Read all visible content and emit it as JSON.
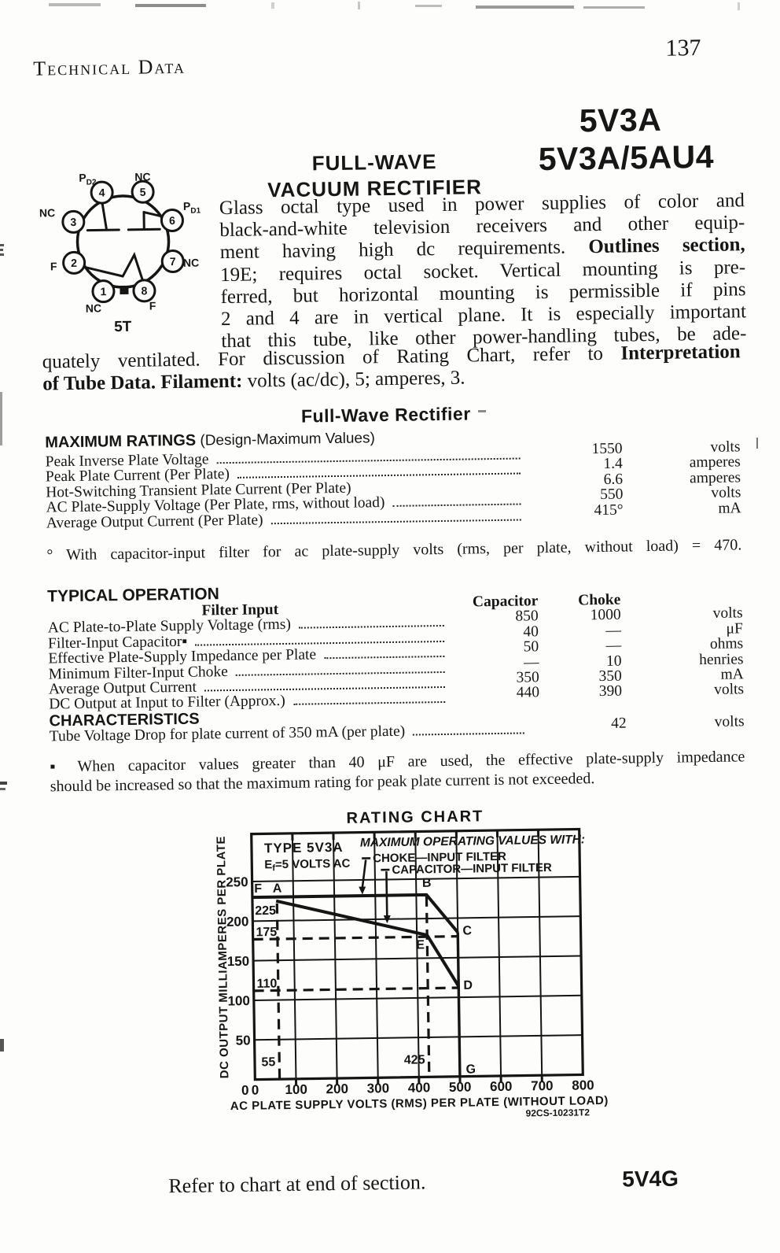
{
  "page": {
    "header_left": "Technical Data",
    "page_number": "137",
    "type_codes": [
      "5V3A",
      "5V3A/5AU4"
    ],
    "title_lines": [
      "FULL-WAVE",
      "VACUUM RECTIFIER"
    ],
    "footer_note": "Refer to chart at end of section.",
    "footer_type": "5V4G"
  },
  "tube_diagram": {
    "caption": "5T",
    "pins": [
      {
        "n": "1",
        "label": "NC"
      },
      {
        "n": "2",
        "label": "F"
      },
      {
        "n": "3",
        "label": "NC"
      },
      {
        "n": "4",
        "label": "P",
        "sub": "D2"
      },
      {
        "n": "5",
        "label": "NC"
      },
      {
        "n": "6",
        "label": "P",
        "sub": "D1"
      },
      {
        "n": "7",
        "label": "NC"
      },
      {
        "n": "8",
        "label": "F"
      }
    ]
  },
  "intro": {
    "narrow_lines": [
      [
        {
          "t": "Glass octal type used in power supplies of color and"
        }
      ],
      [
        {
          "t": "black-and-white television receivers and other equip-"
        }
      ],
      [
        {
          "t": "ment having high dc requirements. "
        },
        {
          "t": "Outlines section,",
          "b": true
        }
      ],
      [
        {
          "t": "19E; requires octal socket. Vertical mounting is pre-"
        }
      ],
      [
        {
          "t": "ferred, but horizontal mounting is permissible if pins"
        }
      ],
      [
        {
          "t": "2 and 4 are in vertical plane. It is especially important"
        }
      ],
      [
        {
          "t": "that this tube, like other power-handling tubes, be ade-"
        }
      ]
    ],
    "wide_lines": [
      [
        {
          "t": "quately ventilated. For discussion of Rating Chart, refer to "
        },
        {
          "t": "Interpretation",
          "b": true
        }
      ],
      [
        {
          "t": "of Tube Data.",
          "b": true
        },
        {
          "t": " "
        },
        {
          "t": "Filament:",
          "b": true
        },
        {
          "t": " volts (ac/dc), 5; amperes, 3."
        }
      ]
    ]
  },
  "section_heading": "Full-Wave Rectifier",
  "max_ratings": {
    "title_bold": "MAXIMUM RATINGS",
    "title_rest": " (Design-Maximum Values)",
    "rows": [
      {
        "label": "Peak Inverse Plate Voltage",
        "value": "1550",
        "unit": "volts"
      },
      {
        "label": "Peak Plate Current (Per Plate)",
        "value": "1.4",
        "unit": "amperes"
      },
      {
        "label": "Hot-Switching Transient Plate Current (Per Plate)",
        "value": "6.6",
        "unit": "amperes",
        "dots": false
      },
      {
        "label": "AC Plate-Supply Voltage (Per Plate, rms, without load)",
        "value": "550",
        "unit": "volts"
      },
      {
        "label": "Average Output Current (Per Plate)",
        "value": "415°",
        "unit": "mA"
      }
    ],
    "footnote": "° With capacitor-input filter for ac plate-supply volts (rms, per plate, without load) = 470."
  },
  "typical_operation": {
    "title": "TYPICAL OPERATION",
    "header": {
      "label": "Filter Input",
      "col1": "Capacitor",
      "col2": "Choke"
    },
    "rows": [
      {
        "label": "AC Plate-to-Plate Supply Voltage (rms)",
        "cap": "850",
        "choke": "1000",
        "unit": "volts"
      },
      {
        "label": "Filter-Input Capacitor▪",
        "cap": "40",
        "choke": "—",
        "unit": "μF"
      },
      {
        "label": "Effective Plate-Supply Impedance per Plate",
        "cap": "50",
        "choke": "—",
        "unit": "ohms"
      },
      {
        "label": "Minimum Filter-Input Choke",
        "cap": "—",
        "choke": "10",
        "unit": "henries"
      },
      {
        "label": "Average Output Current",
        "cap": "350",
        "choke": "350",
        "unit": "mA"
      },
      {
        "label": "DC Output at Input to Filter (Approx.)",
        "cap": "440",
        "choke": "390",
        "unit": "volts"
      }
    ]
  },
  "characteristics": {
    "title": "CHARACTERISTICS",
    "rows": [
      {
        "label": "Tube Voltage Drop for plate current of 350 mA (per plate)",
        "value": "42",
        "unit": "volts"
      }
    ],
    "footnote_lines": [
      "▪ When capacitor values greater than 40 μF are used, the effective plate-supply impedance",
      "should be increased so that the maximum rating for peak plate current is not exceeded."
    ]
  },
  "chart_data": {
    "type": "line",
    "title": "RATING CHART",
    "xlabel": "AC PLATE SUPPLY VOLTS (RMS) PER PLATE (WITHOUT LOAD)",
    "ylabel": "DC OUTPUT MILLIAMPERES PER PLATE",
    "code": "92CS-10231T2",
    "xlim": [
      0,
      800
    ],
    "ylim": [
      0,
      310
    ],
    "xticks": [
      0,
      100,
      200,
      300,
      400,
      500,
      600,
      700,
      800
    ],
    "yticks": [
      50,
      100,
      150,
      200,
      250
    ],
    "grid": true,
    "legend": {
      "type_label": "TYPE 5V3A",
      "filament_pre": "E",
      "filament_sub": "f",
      "filament_post": "=5 VOLTS AC",
      "heading": "MAXIMUM OPERATING VALUES WITH:",
      "series1": "CHOKE—INPUT FILTER",
      "series2": "CAPACITOR—INPUT FILTER"
    },
    "series": [
      {
        "name": "choke-input filter maximum",
        "points": [
          [
            0,
            230
          ],
          [
            425,
            230
          ],
          [
            500,
            182
          ]
        ]
      },
      {
        "name": "capacitor-input filter maximum",
        "points": [
          [
            58,
            225
          ],
          [
            425,
            179
          ],
          [
            500,
            114
          ]
        ]
      },
      {
        "name": "supply-voltage boundary",
        "points": [
          [
            500,
            182
          ],
          [
            500,
            0
          ]
        ]
      }
    ],
    "guides": [
      {
        "axis": "x",
        "at": 60,
        "from": 222,
        "label": "55"
      },
      {
        "axis": "x",
        "at": 425,
        "from": 228,
        "label": "425"
      },
      {
        "axis": "y",
        "at": 177,
        "to": 500,
        "label": "175"
      },
      {
        "axis": "y",
        "at": 112,
        "to": 500,
        "label": "110"
      }
    ],
    "label_points": [
      {
        "t": "F",
        "x": 5,
        "y": 236
      },
      {
        "t": "A",
        "x": 50,
        "y": 236
      },
      {
        "t": "B",
        "x": 415,
        "y": 240
      },
      {
        "t": "C",
        "x": 512,
        "y": 179
      },
      {
        "t": "E",
        "x": 398,
        "y": 162
      },
      {
        "t": "D",
        "x": 512,
        "y": 110
      },
      {
        "t": "G",
        "x": 515,
        "y": 4
      },
      {
        "t": "225",
        "x": 6,
        "y": 208
      }
    ]
  }
}
